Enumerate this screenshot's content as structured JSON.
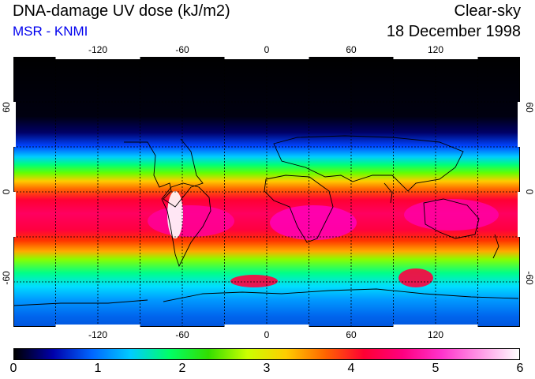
{
  "header": {
    "title": "DNA-damage UV dose (kJ/m2)",
    "source": "MSR - KNMI",
    "condition": "Clear-sky",
    "date": "18 December 1998"
  },
  "map": {
    "longitude_ticks": [
      "-120",
      "-60",
      "0",
      "60",
      "120"
    ],
    "latitude_ticks": [
      "60",
      "0",
      "-60"
    ],
    "lon_range": [
      -180,
      180
    ],
    "lat_range": [
      -90,
      90
    ]
  },
  "colorbar": {
    "labels": [
      "0",
      "1",
      "2",
      "3",
      "4",
      "5",
      "6"
    ],
    "stops": [
      "#000000",
      "#0000aa",
      "#0066ff",
      "#00ccff",
      "#00ff66",
      "#33dd00",
      "#ccff00",
      "#ffcc00",
      "#ff6600",
      "#ff0033",
      "#ff0080",
      "#ff33cc",
      "#ff99e6",
      "#ffffff"
    ]
  }
}
